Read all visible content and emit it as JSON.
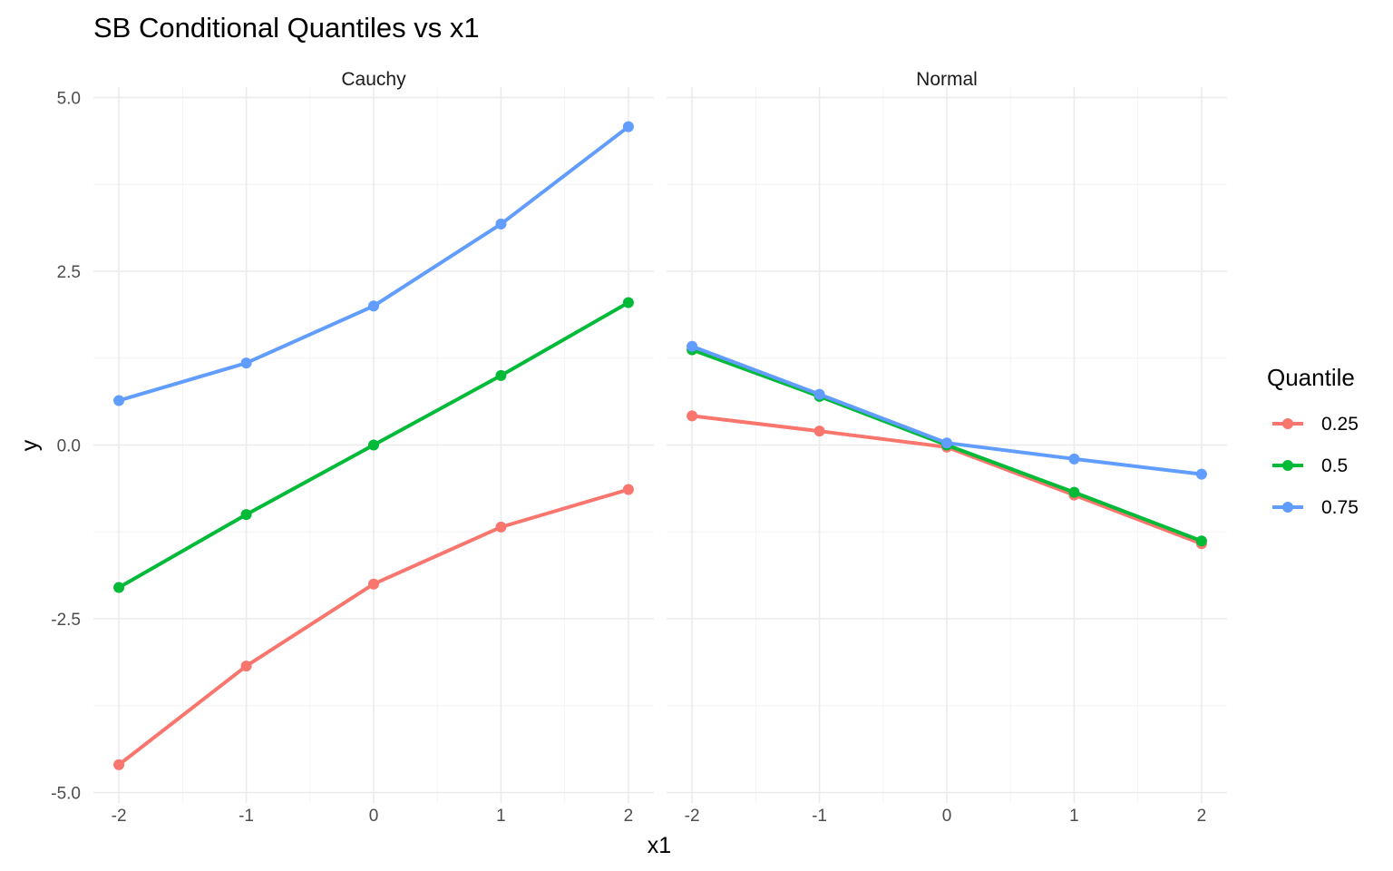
{
  "chart_data": {
    "type": "line",
    "title": "SB Conditional Quantiles vs x1",
    "xlabel": "x1",
    "ylabel": "y",
    "xlim": [
      -2.2,
      2.2
    ],
    "ylim": [
      -5.15,
      5.15
    ],
    "x_ticks": [
      -2,
      -1,
      0,
      1,
      2
    ],
    "x_tick_labels": [
      "-2",
      "-1",
      "0",
      "1",
      "2"
    ],
    "y_ticks": [
      -5,
      -2.5,
      0,
      2.5,
      5
    ],
    "y_tick_labels": [
      "-5.0",
      "-2.5",
      "0.0",
      "2.5",
      "5.0"
    ],
    "grid": true,
    "legend": {
      "title": "Quantile",
      "position": "right",
      "entries": [
        "0.25",
        "0.5",
        "0.75"
      ]
    },
    "x": [
      -2,
      -1,
      0,
      1,
      2
    ],
    "facets": [
      {
        "label": "Cauchy",
        "series": [
          {
            "name": "0.25",
            "color": "#F8766D",
            "values": [
              -4.6,
              -3.18,
              -2.0,
              -1.18,
              -0.64
            ]
          },
          {
            "name": "0.5",
            "color": "#00BA38",
            "values": [
              -2.05,
              -1.0,
              0.0,
              1.0,
              2.05
            ]
          },
          {
            "name": "0.75",
            "color": "#619CFF",
            "values": [
              0.64,
              1.18,
              2.0,
              3.18,
              4.58
            ]
          }
        ]
      },
      {
        "label": "Normal",
        "series": [
          {
            "name": "0.25",
            "color": "#F8766D",
            "values": [
              0.42,
              0.2,
              -0.03,
              -0.72,
              -1.42
            ]
          },
          {
            "name": "0.5",
            "color": "#00BA38",
            "values": [
              1.37,
              0.7,
              0.0,
              -0.68,
              -1.38
            ]
          },
          {
            "name": "0.75",
            "color": "#619CFF",
            "values": [
              1.42,
              0.73,
              0.03,
              -0.2,
              -0.42
            ]
          }
        ]
      }
    ]
  }
}
